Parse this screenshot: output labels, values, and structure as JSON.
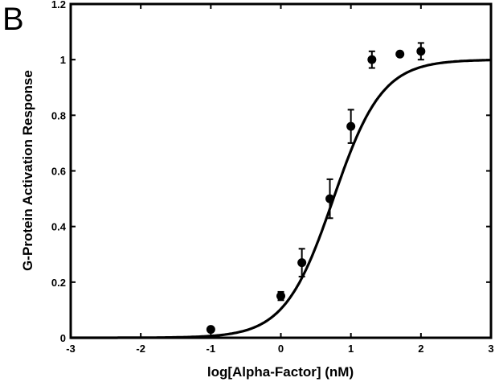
{
  "panel_label": "B",
  "chart_data": {
    "type": "scatter",
    "title": "",
    "xlabel": "log[Alpha-Factor] (nM)",
    "ylabel": "G-Protein Activation Response",
    "xlim": [
      -3,
      3
    ],
    "ylim": [
      0,
      1.2
    ],
    "xticks": [
      -3,
      -2,
      -1,
      0,
      1,
      2,
      3
    ],
    "yticks": [
      0,
      0.2,
      0.4,
      0.6,
      0.8,
      1,
      1.2
    ],
    "ytick_labels": [
      "0",
      "0.2",
      "0.4",
      "0.6",
      "0.8",
      "1",
      "1.2"
    ],
    "grid": false,
    "legend": "none",
    "series": [
      {
        "kind": "points-with-error-bars",
        "x": [
          -1,
          0,
          0.3,
          0.7,
          1,
          1.3,
          1.7,
          2
        ],
        "y": [
          0.03,
          0.15,
          0.27,
          0.5,
          0.76,
          1.0,
          1.02,
          1.03
        ],
        "err": [
          0.005,
          0.015,
          0.05,
          0.07,
          0.06,
          0.03,
          0.0,
          0.03
        ]
      },
      {
        "kind": "fitted-curve",
        "model": "hill",
        "top": 1.0,
        "bottom": 0.0,
        "log_ec50": 0.75,
        "hill_slope": 1.25
      }
    ]
  }
}
